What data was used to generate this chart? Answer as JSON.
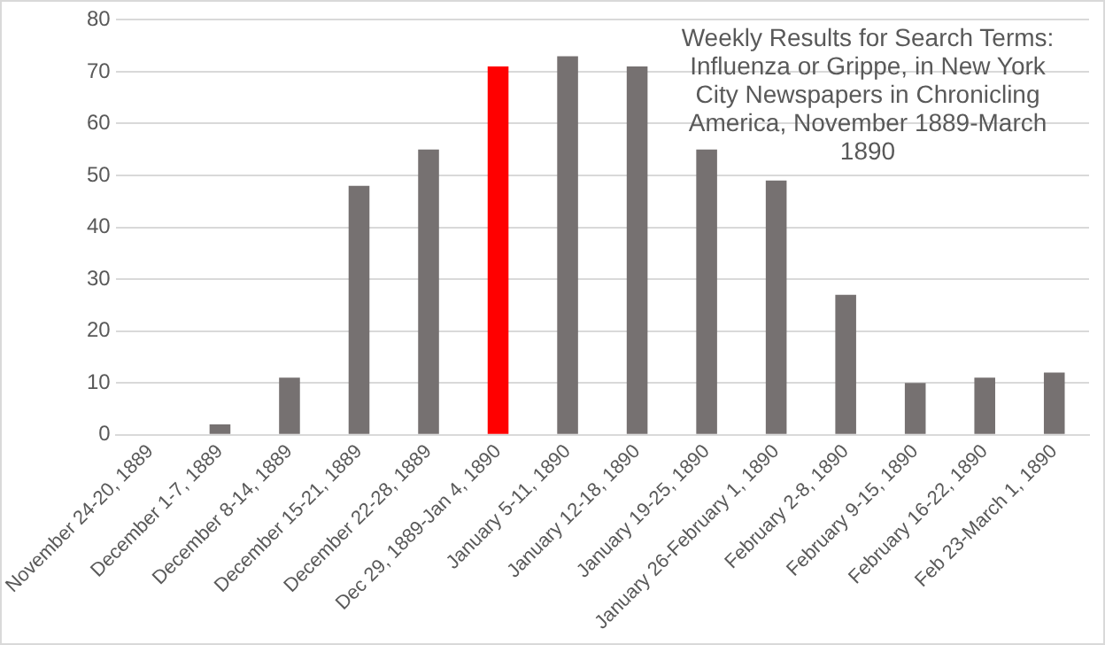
{
  "chart_data": {
    "type": "bar",
    "title": "Weekly Results for Search Terms: Influenza or Grippe, in New York City Newspapers in Chronicling America, November 1889-March 1890",
    "categories": [
      "November 24-20, 1889",
      "December 1-7, 1889",
      "December 8-14, 1889",
      "December 15-21, 1889",
      "December 22-28, 1889",
      "Dec 29, 1889-Jan 4, 1890",
      "January 5-11, 1890",
      "January 12-18, 1890",
      "January 19-25, 1890",
      "January 26-February 1, 1890",
      "February 2-8, 1890",
      "February 9-15, 1890",
      "February 16-22, 1890",
      "Feb 23-March 1, 1890"
    ],
    "values": [
      0,
      2,
      11,
      48,
      55,
      71,
      73,
      71,
      55,
      49,
      27,
      10,
      11,
      12
    ],
    "colors": [
      "#767171",
      "#767171",
      "#767171",
      "#767171",
      "#767171",
      "#ff0000",
      "#767171",
      "#767171",
      "#767171",
      "#767171",
      "#767171",
      "#767171",
      "#767171",
      "#767171"
    ],
    "ylim": [
      0,
      80
    ],
    "yticks": [
      0,
      10,
      20,
      30,
      40,
      50,
      60,
      70,
      80
    ],
    "grid": "y",
    "legend": false
  }
}
